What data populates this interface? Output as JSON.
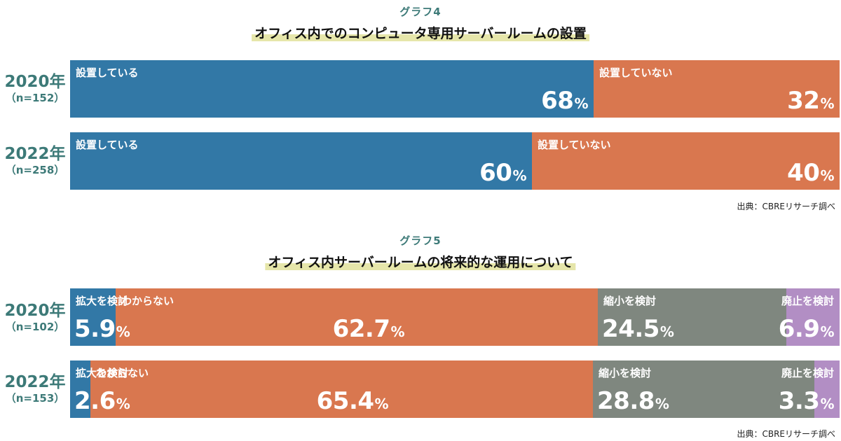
{
  "chart_data": [
    {
      "type": "bar",
      "stacked": true,
      "orientation": "horizontal",
      "percent": true,
      "graph_label": "グラフ4",
      "title": "オフィス内でのコンピュータ専用サーバールームの設置",
      "categories": [
        {
          "year": "2020年",
          "n": "（n=152）"
        },
        {
          "year": "2022年",
          "n": "（n=258）"
        }
      ],
      "series": [
        {
          "name": "設置している",
          "color": "#3278a6",
          "values": [
            68,
            60
          ],
          "display": [
            "68",
            "60"
          ]
        },
        {
          "name": "設置していない",
          "color": "#d9774f",
          "values": [
            32,
            40
          ],
          "display": [
            "32",
            "40"
          ]
        }
      ],
      "source": "出典：CBREリサーチ調べ"
    },
    {
      "type": "bar",
      "stacked": true,
      "orientation": "horizontal",
      "percent": true,
      "graph_label": "グラフ5",
      "title": "オフィス内サーバールームの将来的な運用について",
      "categories": [
        {
          "year": "2020年",
          "n": "（n=102）"
        },
        {
          "year": "2022年",
          "n": "（n=153）"
        }
      ],
      "series": [
        {
          "name": "拡大を検討",
          "color": "#3278a6",
          "values": [
            5.9,
            2.6
          ],
          "display": [
            "5.9",
            "2.6"
          ]
        },
        {
          "name": "わからない",
          "color": "#d9774f",
          "values": [
            62.7,
            65.4
          ],
          "display": [
            "62.7",
            "65.4"
          ]
        },
        {
          "name": "縮小を検討",
          "color": "#7f877f",
          "values": [
            24.5,
            28.8
          ],
          "display": [
            "24.5",
            "28.8"
          ]
        },
        {
          "name": "廃止を検討",
          "color": "#b28ec4",
          "values": [
            6.9,
            3.3
          ],
          "display": [
            "6.9",
            "3.3"
          ]
        }
      ],
      "source": "出典：CBREリサーチ調べ"
    }
  ],
  "unit": "%"
}
